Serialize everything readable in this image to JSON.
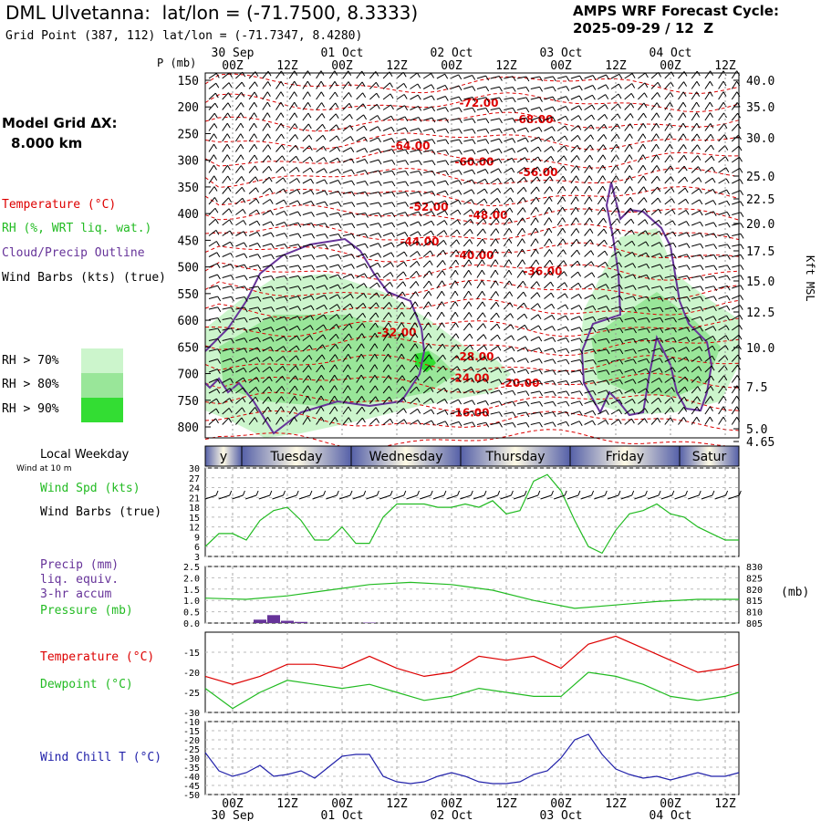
{
  "header": {
    "title": "DML Ulvetanna:  lat/lon = (-71.7500, 8.3333)",
    "subtitle": "Grid Point (387, 112) lat/lon = (-71.7347, 8.4280)",
    "cycle_line1": "AMPS WRF Forecast Cycle:",
    "cycle_line2": "2025-09-29 / 12  Z"
  },
  "left_panel": {
    "model_grid_label": "Model Grid ΔX:",
    "model_grid_value": "8.000 km",
    "legend_temperature": "Temperature (°C)",
    "legend_rh": "RH (%, WRT liq. wat.)",
    "legend_cloud": "Cloud/Precip Outline",
    "legend_wind": "Wind Barbs (kts) (true)",
    "rh_levels": [
      "RH > 70%",
      "RH > 80%",
      "RH > 90%"
    ],
    "local_weekday_label": "Local Weekday",
    "wind_at_label": "Wind at 10 m"
  },
  "colors": {
    "temperature": "#dd0000",
    "rh70": "#ccf5cc",
    "rh80": "#99e699",
    "rh90": "#33dd33",
    "cloud": "#663399",
    "wind_speed": "#22bb22",
    "pressure": "#22bb22",
    "precip": "#663399",
    "dewpoint": "#22bb22",
    "wind_chill": "#2222aa"
  },
  "chart_data": [
    {
      "type": "line",
      "panel": "cross-section",
      "ylabel_left": "P (mb)",
      "ylabel_right": "Kft MSL",
      "y_ticks_left": [
        150,
        200,
        250,
        300,
        350,
        400,
        450,
        500,
        550,
        600,
        650,
        700,
        750,
        800
      ],
      "y_ticks_right": [
        "40.0",
        "35.0",
        "30.0",
        "25.0",
        "22.5",
        "20.0",
        "17.5",
        "15.0",
        "12.5",
        "10.0",
        "7.5",
        "5.0",
        "4.65"
      ],
      "x_ticks_top": [
        "00Z",
        "12Z",
        "00Z",
        "12Z",
        "00Z",
        "12Z",
        "00Z",
        "12Z",
        "00Z",
        "12Z"
      ],
      "x_dates_top": [
        "30 Sep",
        "01 Oct",
        "02 Oct",
        "03 Oct",
        "04 Oct"
      ],
      "isotherm_labels": [
        {
          "text": "-72.00",
          "hour": 60,
          "p": 200
        },
        {
          "text": "-68.00",
          "hour": 72,
          "p": 230
        },
        {
          "text": "-64.00",
          "hour": 45,
          "p": 280
        },
        {
          "text": "-60.00",
          "hour": 59,
          "p": 310
        },
        {
          "text": "-56.00",
          "hour": 73,
          "p": 330
        },
        {
          "text": "-52.00",
          "hour": 49,
          "p": 395
        },
        {
          "text": "-48.00",
          "hour": 62,
          "p": 410
        },
        {
          "text": "-44.00",
          "hour": 47,
          "p": 460
        },
        {
          "text": "-40.00",
          "hour": 59,
          "p": 485
        },
        {
          "text": "-36.00",
          "hour": 74,
          "p": 515
        },
        {
          "text": "-32.00",
          "hour": 42,
          "p": 630
        },
        {
          "text": "-28.00",
          "hour": 59,
          "p": 675
        },
        {
          "text": "-24.00",
          "hour": 58,
          "p": 715
        },
        {
          "text": "-20.00",
          "hour": 69,
          "p": 725
        },
        {
          "text": "-16.00",
          "hour": 58,
          "p": 780
        }
      ]
    },
    {
      "type": "line",
      "panel": "wind",
      "weekdays": [
        "y",
        "Tuesday",
        "Wednesday",
        "Thursday",
        "Friday",
        "Satur"
      ],
      "series": [
        {
          "name": "Wind Spd (kts)",
          "x": [
            0,
            3,
            6,
            9,
            12,
            15,
            18,
            21,
            24,
            27,
            30,
            33,
            36,
            39,
            42,
            45,
            48,
            51,
            54,
            57,
            60,
            63,
            66,
            69,
            72,
            75,
            78,
            81,
            84,
            87,
            90,
            93,
            96,
            99,
            102,
            105,
            108,
            111,
            114,
            117
          ],
          "values": [
            6,
            10,
            10,
            8,
            14,
            17,
            18,
            14,
            8,
            8,
            12,
            7,
            7,
            15,
            19,
            19,
            19,
            18,
            18,
            19,
            18,
            20,
            16,
            17,
            26,
            28,
            23,
            14,
            6,
            4,
            11,
            16,
            17,
            19,
            16,
            15,
            12,
            10,
            8,
            8
          ]
        }
      ],
      "ylim": [
        3,
        30
      ],
      "y_ticks": [
        3,
        6,
        9,
        12,
        15,
        18,
        21,
        24,
        27,
        30
      ],
      "barbs_label": "Wind Barbs (true)"
    },
    {
      "type": "line",
      "panel": "precip-pressure",
      "series": [
        {
          "name": "Precip (mm)",
          "type": "bar",
          "x": [
            12,
            15,
            18,
            21,
            36
          ],
          "values": [
            0.15,
            0.35,
            0.1,
            0.05,
            0.02
          ]
        },
        {
          "name": "Pressure (mb)",
          "x": [
            0,
            9,
            18,
            27,
            36,
            45,
            54,
            63,
            72,
            81,
            90,
            99,
            108,
            117
          ],
          "values": [
            816,
            815.5,
            817,
            819.5,
            822,
            823,
            822,
            819.5,
            815,
            811.5,
            813,
            814.5,
            815.5,
            815.5
          ]
        }
      ],
      "ylim_left": [
        0,
        2.5
      ],
      "y_ticks_left": [
        "0.0",
        "0.5",
        "1.0",
        "1.5",
        "2.0",
        "2.5"
      ],
      "ylim_right": [
        805,
        830
      ],
      "y_ticks_right": [
        "805",
        "810",
        "815",
        "820",
        "825",
        "830"
      ],
      "precip_label": [
        "Precip (mm)",
        "liq. equiv.",
        "3-hr accum"
      ],
      "pressure_label": "Pressure (mb)",
      "right_unit": "(mb)"
    },
    {
      "type": "line",
      "panel": "temperature",
      "series": [
        {
          "name": "Temperature (°C)",
          "x": [
            0,
            6,
            12,
            18,
            24,
            30,
            36,
            42,
            48,
            54,
            60,
            66,
            72,
            78,
            84,
            90,
            96,
            102,
            108,
            114,
            117
          ],
          "values": [
            -21,
            -23,
            -21,
            -18,
            -18,
            -19,
            -16,
            -19,
            -21,
            -20,
            -16,
            -17,
            -16,
            -19,
            -13,
            -11,
            -14,
            -17,
            -20,
            -19,
            -18
          ]
        },
        {
          "name": "Dewpoint (°C)",
          "x": [
            0,
            6,
            12,
            18,
            24,
            30,
            36,
            42,
            48,
            54,
            60,
            66,
            72,
            78,
            84,
            90,
            96,
            102,
            108,
            114,
            117
          ],
          "values": [
            -24,
            -29,
            -25,
            -22,
            -23,
            -24,
            -23,
            -25,
            -27,
            -26,
            -24,
            -25,
            -26,
            -26,
            -20,
            -21,
            -23,
            -26,
            -27,
            -26,
            -25
          ]
        }
      ],
      "ylim": [
        -30,
        -10
      ],
      "y_ticks": [
        -30,
        -25,
        -20,
        -15
      ]
    },
    {
      "type": "line",
      "panel": "wind-chill",
      "series": [
        {
          "name": "Wind Chill T (°C)",
          "x": [
            0,
            3,
            6,
            9,
            12,
            15,
            18,
            21,
            24,
            27,
            30,
            33,
            36,
            39,
            42,
            45,
            48,
            51,
            54,
            57,
            60,
            63,
            66,
            69,
            72,
            75,
            78,
            81,
            84,
            87,
            90,
            93,
            96,
            99,
            102,
            105,
            108,
            111,
            114,
            117
          ],
          "values": [
            -27,
            -37,
            -40,
            -38,
            -34,
            -40,
            -39,
            -37,
            -41,
            -35,
            -29,
            -28,
            -28,
            -40,
            -43,
            -44,
            -43,
            -40,
            -38,
            -40,
            -43,
            -44,
            -44,
            -43,
            -39,
            -37,
            -30,
            -20,
            -17,
            -28,
            -36,
            -39,
            -41,
            -40,
            -42,
            -40,
            -38,
            -40,
            -40,
            -38
          ]
        }
      ],
      "ylim": [
        -50,
        -10
      ],
      "y_ticks": [
        -50,
        -45,
        -40,
        -35,
        -30,
        -25,
        -20,
        -15,
        -10
      ],
      "x_ticks_bottom": [
        "00Z",
        "12Z",
        "00Z",
        "12Z",
        "00Z",
        "12Z",
        "00Z",
        "12Z",
        "00Z",
        "12Z"
      ],
      "x_dates_bottom": [
        "30 Sep",
        "01 Oct",
        "02 Oct",
        "03 Oct",
        "04 Oct"
      ]
    }
  ]
}
